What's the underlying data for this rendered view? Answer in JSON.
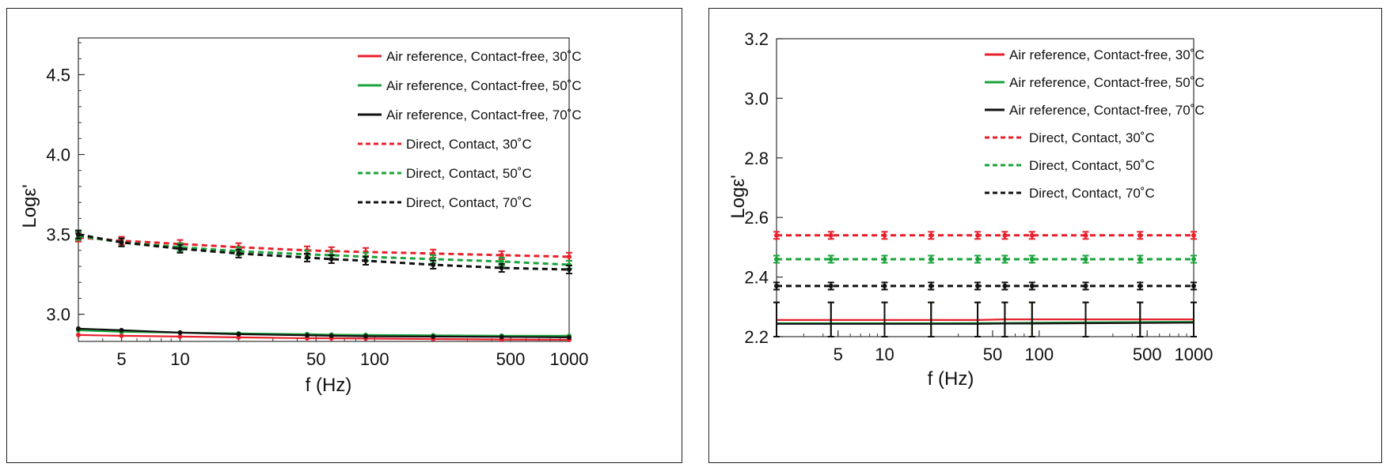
{
  "colors": {
    "red": "#e8202c",
    "green": "#1aa33a",
    "black": "#111111"
  },
  "chart_data": [
    {
      "type": "line",
      "xlabel": "f (Hz)",
      "ylabel": "Logε'",
      "xscale": "log",
      "xlim": [
        3,
        1000
      ],
      "ylim": [
        2.83,
        4.73
      ],
      "xticks": [
        5,
        10,
        50,
        100,
        500,
        1000
      ],
      "xtick_labels": [
        "5",
        "10",
        "50",
        "100",
        "500",
        "1000"
      ],
      "yticks": [
        3.0,
        3.5,
        4.0,
        4.5
      ],
      "ytick_labels": [
        "3.0",
        "3.5",
        "4.0",
        "4.5"
      ],
      "legend_position": "top-right",
      "grid": false,
      "series": [
        {
          "name": "Air reference, Contact-free, 30˚C",
          "color": "#e8202c",
          "dashed": false,
          "error_bars": false,
          "x": [
            3,
            5,
            10,
            20,
            45,
            60,
            90,
            200,
            450,
            1000
          ],
          "values": [
            2.87,
            2.865,
            2.86,
            2.855,
            2.85,
            2.85,
            2.848,
            2.845,
            2.842,
            2.84
          ]
        },
        {
          "name": "Air reference, Contact-free, 50˚C",
          "color": "#1aa33a",
          "dashed": false,
          "error_bars": false,
          "x": [
            3,
            5,
            10,
            20,
            45,
            60,
            90,
            200,
            450,
            1000
          ],
          "values": [
            2.9,
            2.89,
            2.885,
            2.88,
            2.875,
            2.872,
            2.87,
            2.868,
            2.865,
            2.865
          ]
        },
        {
          "name": "Air reference, Contact-free, 70˚C",
          "color": "#111111",
          "dashed": false,
          "error_bars": false,
          "x": [
            3,
            5,
            10,
            20,
            45,
            60,
            90,
            200,
            450,
            1000
          ],
          "values": [
            2.91,
            2.9,
            2.885,
            2.875,
            2.868,
            2.865,
            2.862,
            2.86,
            2.858,
            2.855
          ]
        },
        {
          "name": "Direct, Contact, 30˚C",
          "color": "#e8202c",
          "dashed": true,
          "error_bars": true,
          "x": [
            3,
            5,
            10,
            20,
            45,
            60,
            90,
            200,
            450,
            1000
          ],
          "values": [
            3.48,
            3.46,
            3.44,
            3.42,
            3.4,
            3.395,
            3.39,
            3.38,
            3.37,
            3.36
          ]
        },
        {
          "name": "Direct, Contact, 50˚C",
          "color": "#1aa33a",
          "dashed": true,
          "error_bars": true,
          "x": [
            3,
            5,
            10,
            20,
            45,
            60,
            90,
            200,
            450,
            1000
          ],
          "values": [
            3.49,
            3.45,
            3.42,
            3.395,
            3.375,
            3.37,
            3.36,
            3.345,
            3.33,
            3.31
          ]
        },
        {
          "name": "Direct, Contact, 70˚C",
          "color": "#111111",
          "dashed": true,
          "error_bars": true,
          "x": [
            3,
            5,
            10,
            20,
            45,
            60,
            90,
            200,
            450,
            1000
          ],
          "values": [
            3.5,
            3.45,
            3.41,
            3.38,
            3.355,
            3.345,
            3.335,
            3.31,
            3.29,
            3.28
          ]
        }
      ]
    },
    {
      "type": "line",
      "xlabel": "f (Hz)",
      "ylabel": "Logε'",
      "xscale": "log",
      "xlim": [
        2,
        1000
      ],
      "ylim": [
        2.2,
        3.2
      ],
      "xticks": [
        5,
        10,
        50,
        100,
        500,
        1000
      ],
      "xtick_labels": [
        "5",
        "10",
        "50",
        "100",
        "500",
        "1000"
      ],
      "yticks": [
        2.2,
        2.4,
        2.6,
        2.8,
        3.0,
        3.2
      ],
      "ytick_labels": [
        "2.2",
        "2.4",
        "2.6",
        "2.8",
        "3.0",
        "3.2"
      ],
      "legend_position": "top-right",
      "grid": false,
      "series": [
        {
          "name": "Air reference, Contact-free, 30˚C",
          "color": "#e8202c",
          "dashed": false,
          "error_bars": true,
          "x": [
            2,
            4.5,
            10,
            20,
            40,
            60,
            90,
            200,
            450,
            1000
          ],
          "values": [
            2.256,
            2.256,
            2.256,
            2.256,
            2.256,
            2.258,
            2.258,
            2.258,
            2.258,
            2.258
          ]
        },
        {
          "name": "Air reference, Contact-free, 50˚C",
          "color": "#1aa33a",
          "dashed": false,
          "error_bars": true,
          "x": [
            2,
            4.5,
            10,
            20,
            40,
            60,
            90,
            200,
            450,
            1000
          ],
          "values": [
            2.245,
            2.245,
            2.245,
            2.245,
            2.246,
            2.246,
            2.247,
            2.248,
            2.249,
            2.25
          ]
        },
        {
          "name": "Air reference, Contact-free, 70˚C",
          "color": "#111111",
          "dashed": false,
          "error_bars": true,
          "x": [
            2,
            4.5,
            10,
            20,
            40,
            60,
            90,
            200,
            450,
            1000
          ],
          "values": [
            2.243,
            2.243,
            2.243,
            2.243,
            2.243,
            2.244,
            2.244,
            2.245,
            2.246,
            2.247
          ]
        },
        {
          "name": "Direct, Contact, 30˚C",
          "color": "#e8202c",
          "dashed": true,
          "error_bars": true,
          "x": [
            2,
            4.5,
            10,
            20,
            40,
            60,
            90,
            200,
            450,
            1000
          ],
          "values": [
            2.54,
            2.54,
            2.54,
            2.54,
            2.54,
            2.54,
            2.54,
            2.54,
            2.54,
            2.54
          ]
        },
        {
          "name": "Direct, Contact, 50˚C",
          "color": "#1aa33a",
          "dashed": true,
          "error_bars": true,
          "x": [
            2,
            4.5,
            10,
            20,
            40,
            60,
            90,
            200,
            450,
            1000
          ],
          "values": [
            2.46,
            2.46,
            2.46,
            2.46,
            2.46,
            2.46,
            2.46,
            2.46,
            2.46,
            2.46
          ]
        },
        {
          "name": "Direct, Contact, 70˚C",
          "color": "#111111",
          "dashed": true,
          "error_bars": true,
          "x": [
            2,
            4.5,
            10,
            20,
            40,
            60,
            90,
            200,
            450,
            1000
          ],
          "values": [
            2.37,
            2.37,
            2.37,
            2.37,
            2.37,
            2.37,
            2.37,
            2.37,
            2.37,
            2.37
          ]
        }
      ]
    }
  ]
}
